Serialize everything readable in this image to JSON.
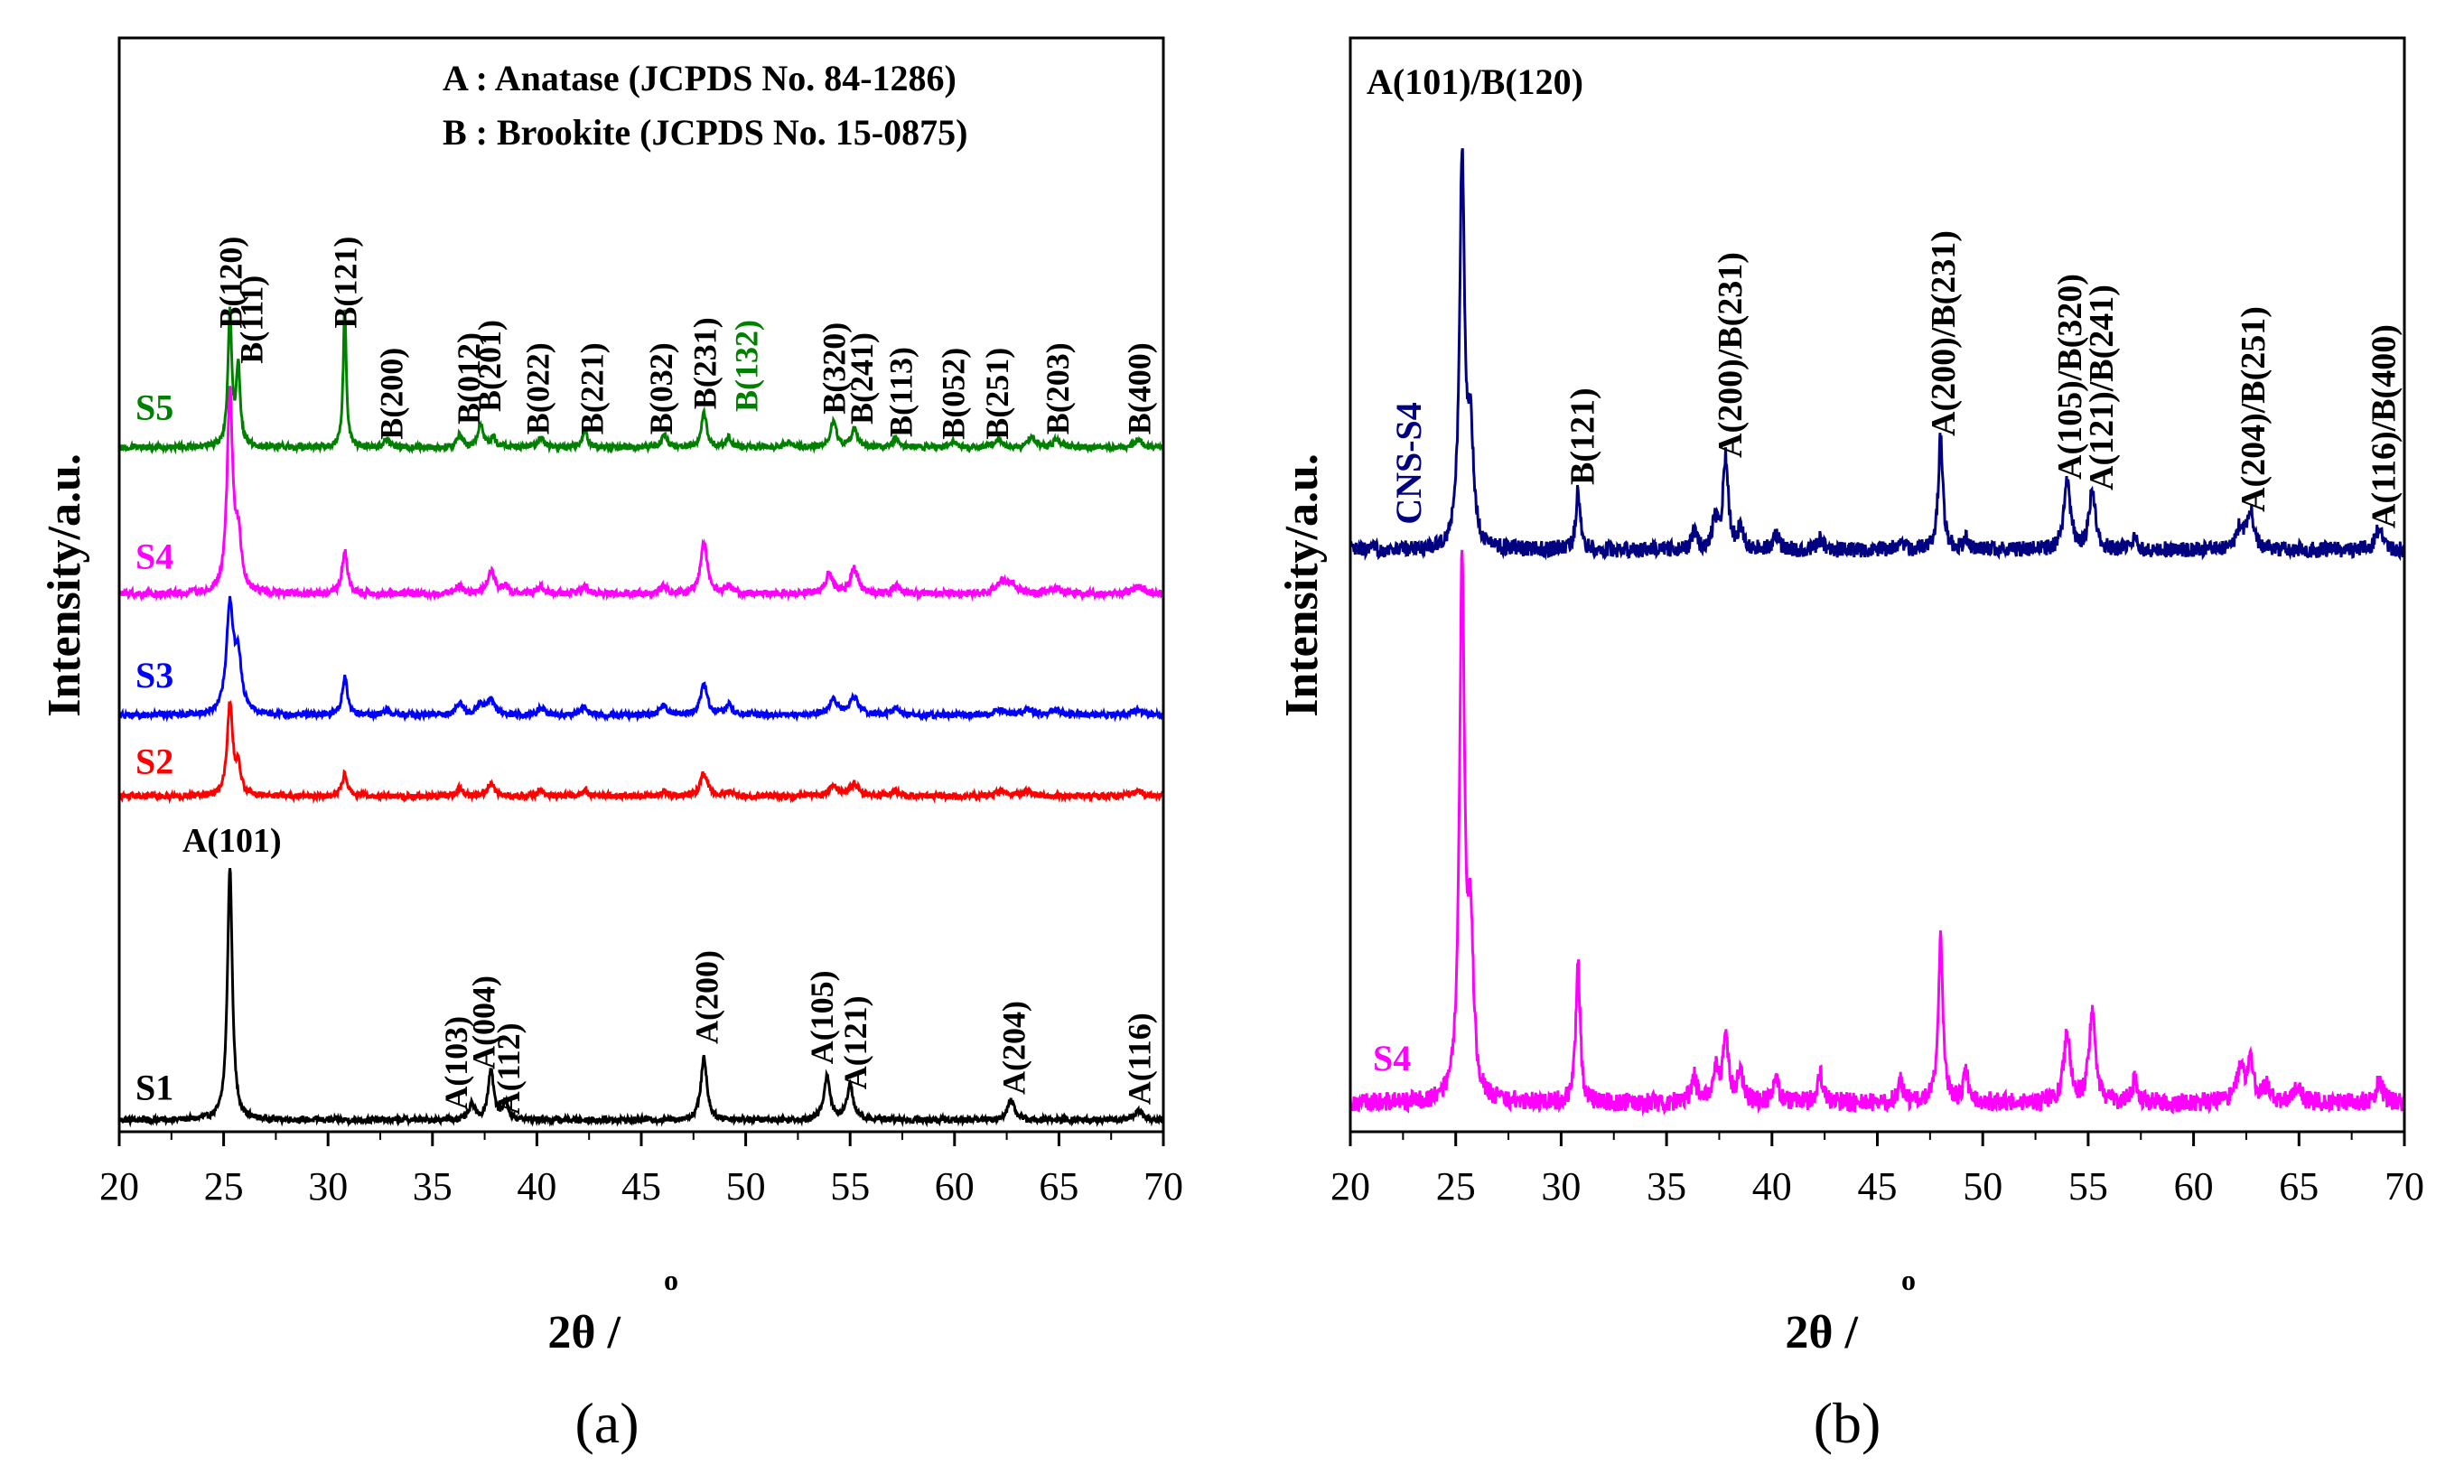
{
  "chart_data": [
    {
      "type": "line",
      "panel_label": "(a)",
      "xlabel": "2θ / ",
      "xlabel_unit": "o",
      "ylabel": "Intensity/a.u.",
      "xlim": [
        20,
        70
      ],
      "x_ticks": [
        "20",
        "25",
        "30",
        "35",
        "40",
        "45",
        "50",
        "55",
        "60",
        "65",
        "70"
      ],
      "grid": false,
      "legend_text": [
        "A : Anatase (JCPDS No. 84-1286)",
        "B : Brookite (JCPDS No. 15-0875)"
      ],
      "series": [
        {
          "name": "S1",
          "color": "#000000",
          "offset": 0,
          "noise": 0.012,
          "peaks": [
            [
              25.3,
              1.0,
              0.14
            ],
            [
              36.9,
              0.06,
              0.16
            ],
            [
              37.8,
              0.2,
              0.16
            ],
            [
              38.5,
              0.07,
              0.16
            ],
            [
              48.0,
              0.25,
              0.17
            ],
            [
              53.9,
              0.17,
              0.18
            ],
            [
              55.0,
              0.14,
              0.18
            ],
            [
              62.7,
              0.08,
              0.2
            ],
            [
              68.8,
              0.04,
              0.22
            ]
          ]
        },
        {
          "name": "S2",
          "color": "#ff0000",
          "offset": 1.28,
          "noise": 0.012,
          "peaks": [
            [
              25.3,
              0.36,
              0.16
            ],
            [
              25.7,
              0.1,
              0.16
            ],
            [
              30.8,
              0.09,
              0.15
            ],
            [
              36.3,
              0.03,
              0.2
            ],
            [
              37.8,
              0.05,
              0.2
            ],
            [
              40.2,
              0.02,
              0.2
            ],
            [
              42.3,
              0.02,
              0.2
            ],
            [
              46.1,
              0.02,
              0.2
            ],
            [
              48.0,
              0.09,
              0.2
            ],
            [
              49.2,
              0.02,
              0.2
            ],
            [
              54.2,
              0.04,
              0.25
            ],
            [
              55.2,
              0.05,
              0.25
            ],
            [
              57.2,
              0.02,
              0.2
            ],
            [
              62.2,
              0.02,
              0.3
            ],
            [
              63.5,
              0.02,
              0.3
            ],
            [
              68.8,
              0.02,
              0.3
            ]
          ]
        },
        {
          "name": "S3",
          "color": "#0000ff",
          "offset": 1.6,
          "noise": 0.012,
          "peaks": [
            [
              25.3,
              0.42,
              0.2
            ],
            [
              25.7,
              0.2,
              0.2
            ],
            [
              30.8,
              0.15,
              0.15
            ],
            [
              32.8,
              0.02,
              0.2
            ],
            [
              36.3,
              0.05,
              0.18
            ],
            [
              37.3,
              0.04,
              0.2
            ],
            [
              37.8,
              0.06,
              0.2
            ],
            [
              40.2,
              0.03,
              0.2
            ],
            [
              42.3,
              0.03,
              0.2
            ],
            [
              46.1,
              0.04,
              0.2
            ],
            [
              48.0,
              0.12,
              0.2
            ],
            [
              49.2,
              0.04,
              0.2
            ],
            [
              54.2,
              0.06,
              0.25
            ],
            [
              55.2,
              0.07,
              0.25
            ],
            [
              57.2,
              0.03,
              0.2
            ],
            [
              62.2,
              0.02,
              0.3
            ],
            [
              63.5,
              0.02,
              0.3
            ],
            [
              64.9,
              0.02,
              0.3
            ],
            [
              68.8,
              0.02,
              0.3
            ]
          ]
        },
        {
          "name": "S4",
          "color": "#ff00ff",
          "offset": 2.08,
          "noise": 0.014,
          "peaks": [
            [
              25.3,
              0.78,
              0.16
            ],
            [
              25.7,
              0.2,
              0.18
            ],
            [
              30.8,
              0.17,
              0.15
            ],
            [
              36.3,
              0.03,
              0.2
            ],
            [
              37.8,
              0.09,
              0.2
            ],
            [
              38.5,
              0.03,
              0.2
            ],
            [
              40.2,
              0.03,
              0.2
            ],
            [
              42.3,
              0.03,
              0.2
            ],
            [
              46.1,
              0.03,
              0.2
            ],
            [
              48.0,
              0.21,
              0.18
            ],
            [
              49.2,
              0.03,
              0.2
            ],
            [
              54.0,
              0.08,
              0.2
            ],
            [
              55.2,
              0.1,
              0.22
            ],
            [
              57.2,
              0.03,
              0.2
            ],
            [
              62.2,
              0.04,
              0.3
            ],
            [
              62.7,
              0.04,
              0.3
            ],
            [
              64.9,
              0.02,
              0.3
            ],
            [
              68.8,
              0.03,
              0.3
            ]
          ]
        },
        {
          "name": "S5",
          "color": "#008000",
          "offset": 2.66,
          "noise": 0.012,
          "peaks": [
            [
              25.3,
              0.53,
              0.11
            ],
            [
              25.7,
              0.32,
              0.11
            ],
            [
              30.8,
              0.55,
              0.09
            ],
            [
              32.8,
              0.03,
              0.15
            ],
            [
              36.3,
              0.05,
              0.15
            ],
            [
              37.3,
              0.09,
              0.15
            ],
            [
              37.9,
              0.04,
              0.15
            ],
            [
              40.2,
              0.04,
              0.15
            ],
            [
              42.3,
              0.07,
              0.15
            ],
            [
              46.1,
              0.05,
              0.15
            ],
            [
              48.0,
              0.14,
              0.15
            ],
            [
              49.2,
              0.04,
              0.15
            ],
            [
              52.0,
              0.02,
              0.15
            ],
            [
              54.2,
              0.1,
              0.18
            ],
            [
              55.2,
              0.07,
              0.18
            ],
            [
              57.2,
              0.04,
              0.15
            ],
            [
              59.9,
              0.02,
              0.15
            ],
            [
              62.1,
              0.03,
              0.2
            ],
            [
              63.7,
              0.04,
              0.2
            ],
            [
              64.9,
              0.03,
              0.2
            ],
            [
              68.8,
              0.03,
              0.2
            ]
          ]
        }
      ],
      "peak_labels": [
        {
          "text": "B(120)",
          "x": 25.3,
          "y": 3.13,
          "rot": -90
        },
        {
          "text": "B(111)",
          "x": 26.3,
          "y": 2.99,
          "rot": -90
        },
        {
          "text": "B(121)",
          "x": 30.8,
          "y": 3.13,
          "rot": -90
        },
        {
          "text": "B(200)",
          "x": 33.0,
          "y": 2.69,
          "rot": -90
        },
        {
          "text": "B(012)",
          "x": 36.7,
          "y": 2.75,
          "rot": -90
        },
        {
          "text": "B(201)",
          "x": 37.7,
          "y": 2.8,
          "rot": -90
        },
        {
          "text": "B(022)",
          "x": 40.0,
          "y": 2.71,
          "rot": -90
        },
        {
          "text": "B(221)",
          "x": 42.6,
          "y": 2.71,
          "rot": -90
        },
        {
          "text": "B(032)",
          "x": 45.9,
          "y": 2.71,
          "rot": -90
        },
        {
          "text": "B(231)",
          "x": 48.0,
          "y": 2.81,
          "rot": -90
        },
        {
          "text": "B(132)",
          "x": 50.0,
          "y": 2.8,
          "rot": -90
        },
        {
          "text": "B(320)",
          "x": 54.2,
          "y": 2.79,
          "rot": -90
        },
        {
          "text": "B(241)",
          "x": 55.5,
          "y": 2.75,
          "rot": -90
        },
        {
          "text": "B(113)",
          "x": 57.4,
          "y": 2.7,
          "rot": -90
        },
        {
          "text": "B(052)",
          "x": 59.9,
          "y": 2.69,
          "rot": -90
        },
        {
          "text": "B(251)",
          "x": 62.0,
          "y": 2.69,
          "rot": -90
        },
        {
          "text": "B(203)",
          "x": 64.9,
          "y": 2.71,
          "rot": -90
        },
        {
          "text": "B(400)",
          "x": 68.8,
          "y": 2.71,
          "rot": -90
        },
        {
          "text": "A(101)",
          "x": 25.4,
          "y": 1.06,
          "rot": 0
        },
        {
          "text": "A(103)",
          "x": 36.1,
          "y": 0.04,
          "rot": -90
        },
        {
          "text": "A(004)",
          "x": 37.4,
          "y": 0.2,
          "rot": -90
        },
        {
          "text": "A(112)",
          "x": 38.6,
          "y": 0.02,
          "rot": -90
        },
        {
          "text": "A(200)",
          "x": 48.1,
          "y": 0.3,
          "rot": -90
        },
        {
          "text": "A(105)",
          "x": 53.6,
          "y": 0.22,
          "rot": -90
        },
        {
          "text": "A(121)",
          "x": 55.2,
          "y": 0.12,
          "rot": -90
        },
        {
          "text": "A(204)",
          "x": 62.8,
          "y": 0.1,
          "rot": -90
        },
        {
          "text": "A(116)",
          "x": 68.8,
          "y": 0.06,
          "rot": -90
        }
      ]
    },
    {
      "type": "line",
      "panel_label": "(b)",
      "xlabel": "2θ / ",
      "xlabel_unit": "o",
      "ylabel": "Intensity/a.u.",
      "xlim": [
        20,
        70
      ],
      "x_ticks": [
        "20",
        "25",
        "30",
        "35",
        "40",
        "45",
        "50",
        "55",
        "60",
        "65",
        "70"
      ],
      "grid": false,
      "series": [
        {
          "name": "S4",
          "color": "#ff00ff",
          "offset": 0,
          "noise": 0.018,
          "peaks": [
            [
              25.3,
              0.99,
              0.14
            ],
            [
              25.7,
              0.3,
              0.16
            ],
            [
              30.8,
              0.26,
              0.12
            ],
            [
              36.3,
              0.05,
              0.15
            ],
            [
              37.3,
              0.06,
              0.15
            ],
            [
              37.8,
              0.13,
              0.15
            ],
            [
              38.5,
              0.06,
              0.15
            ],
            [
              40.2,
              0.05,
              0.15
            ],
            [
              42.3,
              0.05,
              0.15
            ],
            [
              46.1,
              0.04,
              0.15
            ],
            [
              48.0,
              0.31,
              0.13
            ],
            [
              49.2,
              0.05,
              0.15
            ],
            [
              54.0,
              0.13,
              0.18
            ],
            [
              55.2,
              0.17,
              0.18
            ],
            [
              57.2,
              0.04,
              0.15
            ],
            [
              62.2,
              0.06,
              0.2
            ],
            [
              62.7,
              0.07,
              0.2
            ],
            [
              63.5,
              0.03,
              0.2
            ],
            [
              64.9,
              0.03,
              0.2
            ],
            [
              68.8,
              0.04,
              0.2
            ]
          ]
        },
        {
          "name": "CNS-S4",
          "color": "#000080",
          "offset": 1.02,
          "noise": 0.015,
          "peaks": [
            [
              25.3,
              0.72,
              0.14
            ],
            [
              25.7,
              0.2,
              0.17
            ],
            [
              30.8,
              0.11,
              0.12
            ],
            [
              36.3,
              0.03,
              0.15
            ],
            [
              37.3,
              0.05,
              0.15
            ],
            [
              37.8,
              0.17,
              0.15
            ],
            [
              38.5,
              0.04,
              0.15
            ],
            [
              40.2,
              0.03,
              0.15
            ],
            [
              42.3,
              0.02,
              0.15
            ],
            [
              46.1,
              0.02,
              0.15
            ],
            [
              48.0,
              0.21,
              0.13
            ],
            [
              49.2,
              0.02,
              0.15
            ],
            [
              54.0,
              0.13,
              0.18
            ],
            [
              55.2,
              0.11,
              0.18
            ],
            [
              57.2,
              0.02,
              0.15
            ],
            [
              62.2,
              0.04,
              0.2
            ],
            [
              62.7,
              0.07,
              0.2
            ],
            [
              68.8,
              0.04,
              0.2
            ]
          ]
        }
      ],
      "peak_labels": [
        {
          "text": "A(101)/B(120)",
          "x": 20.0,
          "y": 1.8,
          "rot": 0
        },
        {
          "text": "B(121)",
          "x": 31.0,
          "y": 1.14,
          "rot": -90
        },
        {
          "text": "A(200)/B(231)",
          "x": 38.0,
          "y": 1.19,
          "rot": -90
        },
        {
          "text": "A(200)/B(231)",
          "x": 48.1,
          "y": 1.23,
          "rot": -90
        },
        {
          "text": "A(105)/B(320)",
          "x": 54.1,
          "y": 1.15,
          "rot": -90
        },
        {
          "text": "A(121)/B(241)",
          "x": 55.6,
          "y": 1.13,
          "rot": -90
        },
        {
          "text": "A(204)/B(251)",
          "x": 62.8,
          "y": 1.09,
          "rot": -90
        },
        {
          "text": "A(116)/B(400)",
          "x": 69.0,
          "y": 1.06,
          "rot": -90
        }
      ]
    }
  ]
}
